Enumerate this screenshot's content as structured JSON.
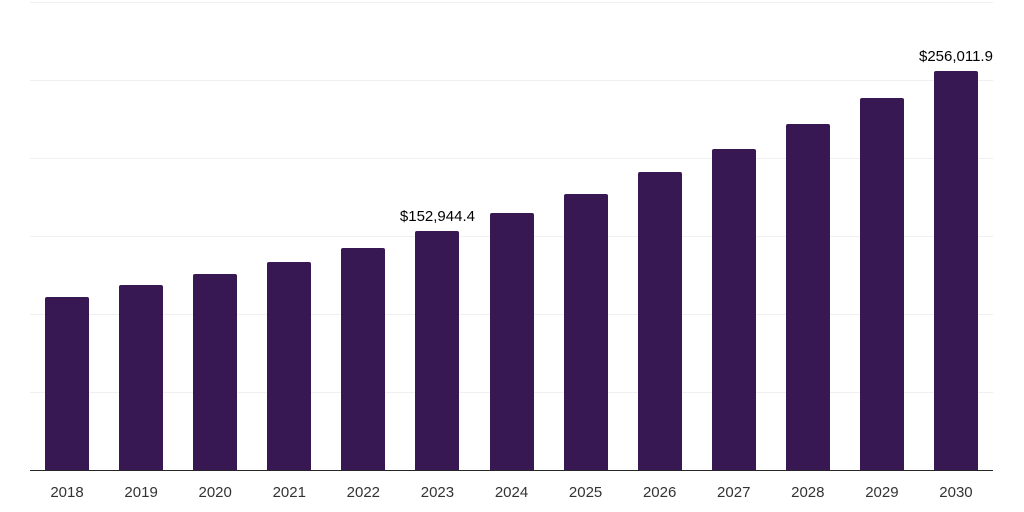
{
  "chart_data": {
    "type": "bar",
    "title": "",
    "xlabel": "",
    "ylabel": "",
    "categories": [
      "2018",
      "2019",
      "2020",
      "2021",
      "2022",
      "2023",
      "2024",
      "2025",
      "2026",
      "2027",
      "2028",
      "2029",
      "2030"
    ],
    "values": [
      110900,
      118600,
      125600,
      133300,
      142300,
      152944.4,
      164700,
      176900,
      191000,
      205800,
      221800,
      238500,
      256011.9
    ],
    "point_labels": [
      "",
      "",
      "",
      "",
      "",
      "$152,944.4",
      "",
      "",
      "",
      "",
      "",
      "",
      "$256,011.9"
    ],
    "ylim": [
      0,
      300000
    ],
    "grid_step": 50000,
    "grid": true,
    "legend_position": "none",
    "colors": {
      "bar": "#381852",
      "gridline": "#f0f0f0",
      "axis_line": "#262626",
      "tick_label": "#333333",
      "data_label": "#000000",
      "background": "#ffffff"
    }
  }
}
